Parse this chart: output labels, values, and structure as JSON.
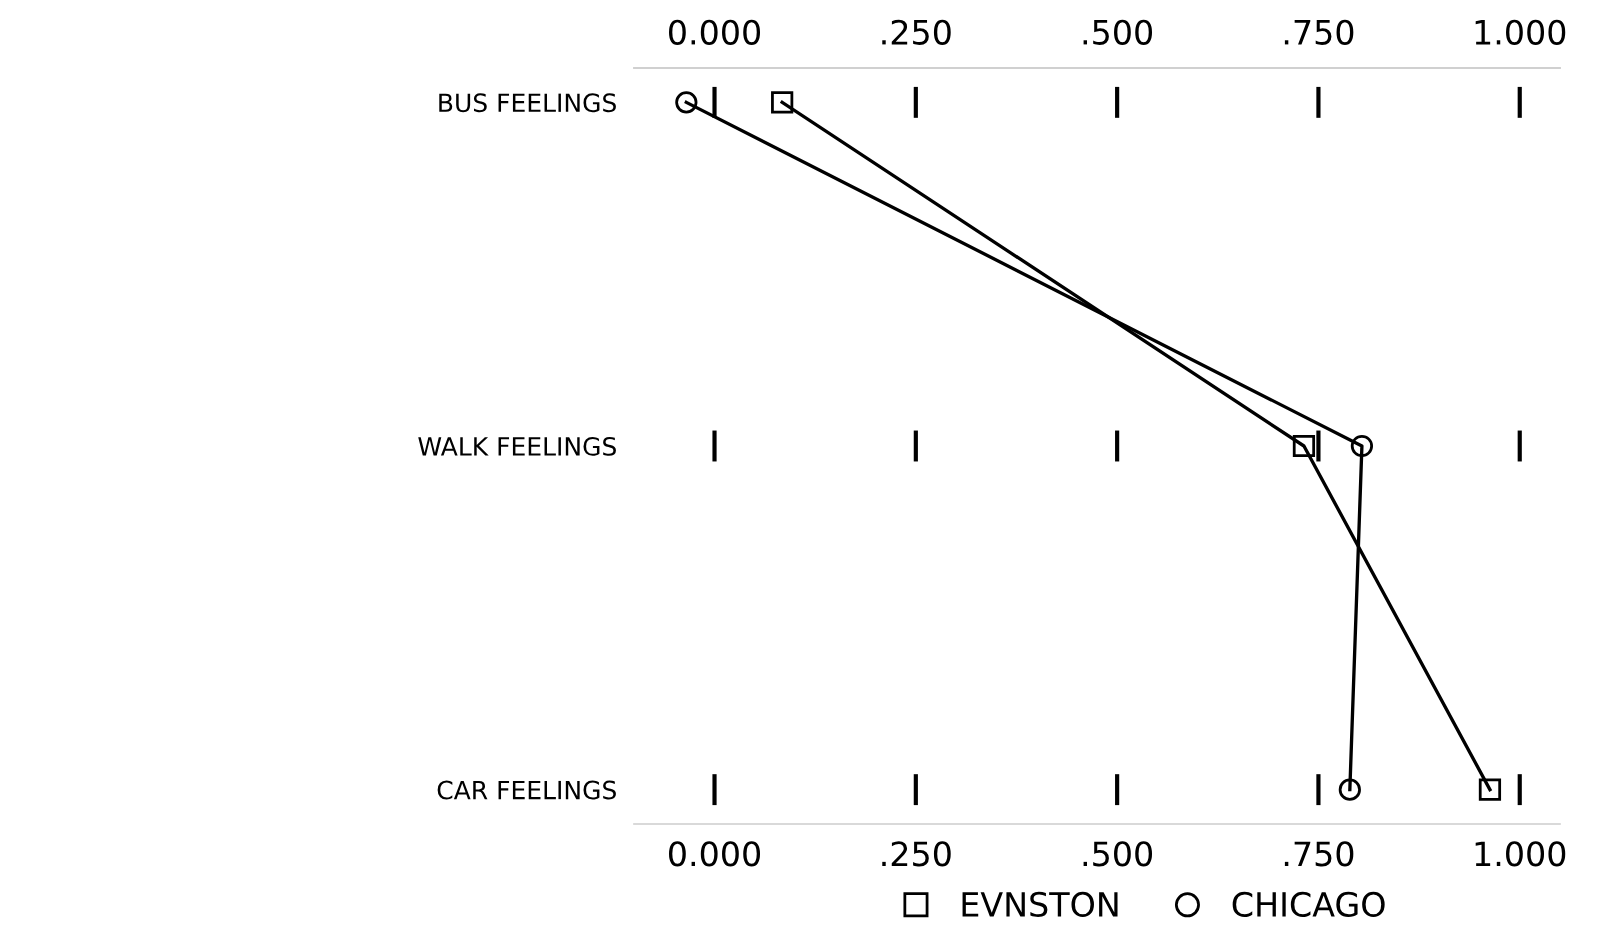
{
  "chart_data": {
    "type": "line",
    "orientation": "horizontal",
    "categories": [
      "BUS FEELINGS",
      "WALK FEELINGS",
      "CAR FEELINGS"
    ],
    "series": [
      {
        "name": "EVNSTON",
        "color": "#000000",
        "marker": "square",
        "values": [
          0.084,
          0.732,
          0.963
        ]
      },
      {
        "name": "CHICAGO",
        "color": "#000000",
        "marker": "circle",
        "values": [
          -0.035,
          0.804,
          0.789
        ]
      }
    ],
    "xlim": [
      -0.1,
      1.05
    ],
    "xticks": [
      {
        "value": 0,
        "label": "0.000"
      },
      {
        "value": 0.25,
        "label": ".250"
      },
      {
        "value": 0.5,
        "label": ".500"
      },
      {
        "value": 0.75,
        "label": ".750"
      },
      {
        "value": 1,
        "label": "1.000"
      }
    ],
    "x2lim": [
      -0.1,
      1.05
    ],
    "x2ticks": [
      {
        "value": 0,
        "label": "0.000"
      },
      {
        "value": 0.25,
        "label": ".250"
      },
      {
        "value": 0.5,
        "label": ".500"
      },
      {
        "value": 0.75,
        "label": ".750"
      },
      {
        "value": 1,
        "label": "1.000"
      }
    ],
    "legend": "bottom",
    "line_style": "solid",
    "grid": false
  }
}
